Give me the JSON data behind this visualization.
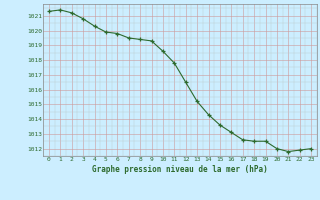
{
  "x": [
    0,
    1,
    2,
    3,
    4,
    5,
    6,
    7,
    8,
    9,
    10,
    11,
    12,
    13,
    14,
    15,
    16,
    17,
    18,
    19,
    20,
    21,
    22,
    23
  ],
  "y": [
    1021.3,
    1021.4,
    1021.2,
    1020.8,
    1020.3,
    1019.9,
    1019.8,
    1019.5,
    1019.4,
    1019.3,
    1018.6,
    1017.8,
    1016.5,
    1015.2,
    1014.3,
    1013.6,
    1013.1,
    1012.6,
    1012.5,
    1012.5,
    1012.0,
    1011.8,
    1011.9,
    1012.0
  ],
  "line_color": "#2d6a2d",
  "marker_color": "#2d6a2d",
  "bg_color": "#cceeff",
  "grid_color_major": "#aaaaaa",
  "grid_color_minor": "#ccdddd",
  "xlabel": "Graphe pression niveau de la mer (hPa)",
  "xlabel_color": "#2d6a2d",
  "tick_color": "#2d6a2d",
  "ylim": [
    1011.5,
    1021.8
  ],
  "xlim": [
    -0.5,
    23.5
  ],
  "yticks": [
    1012,
    1013,
    1014,
    1015,
    1016,
    1017,
    1018,
    1019,
    1020,
    1021
  ],
  "xticks": [
    0,
    1,
    2,
    3,
    4,
    5,
    6,
    7,
    8,
    9,
    10,
    11,
    12,
    13,
    14,
    15,
    16,
    17,
    18,
    19,
    20,
    21,
    22,
    23
  ]
}
